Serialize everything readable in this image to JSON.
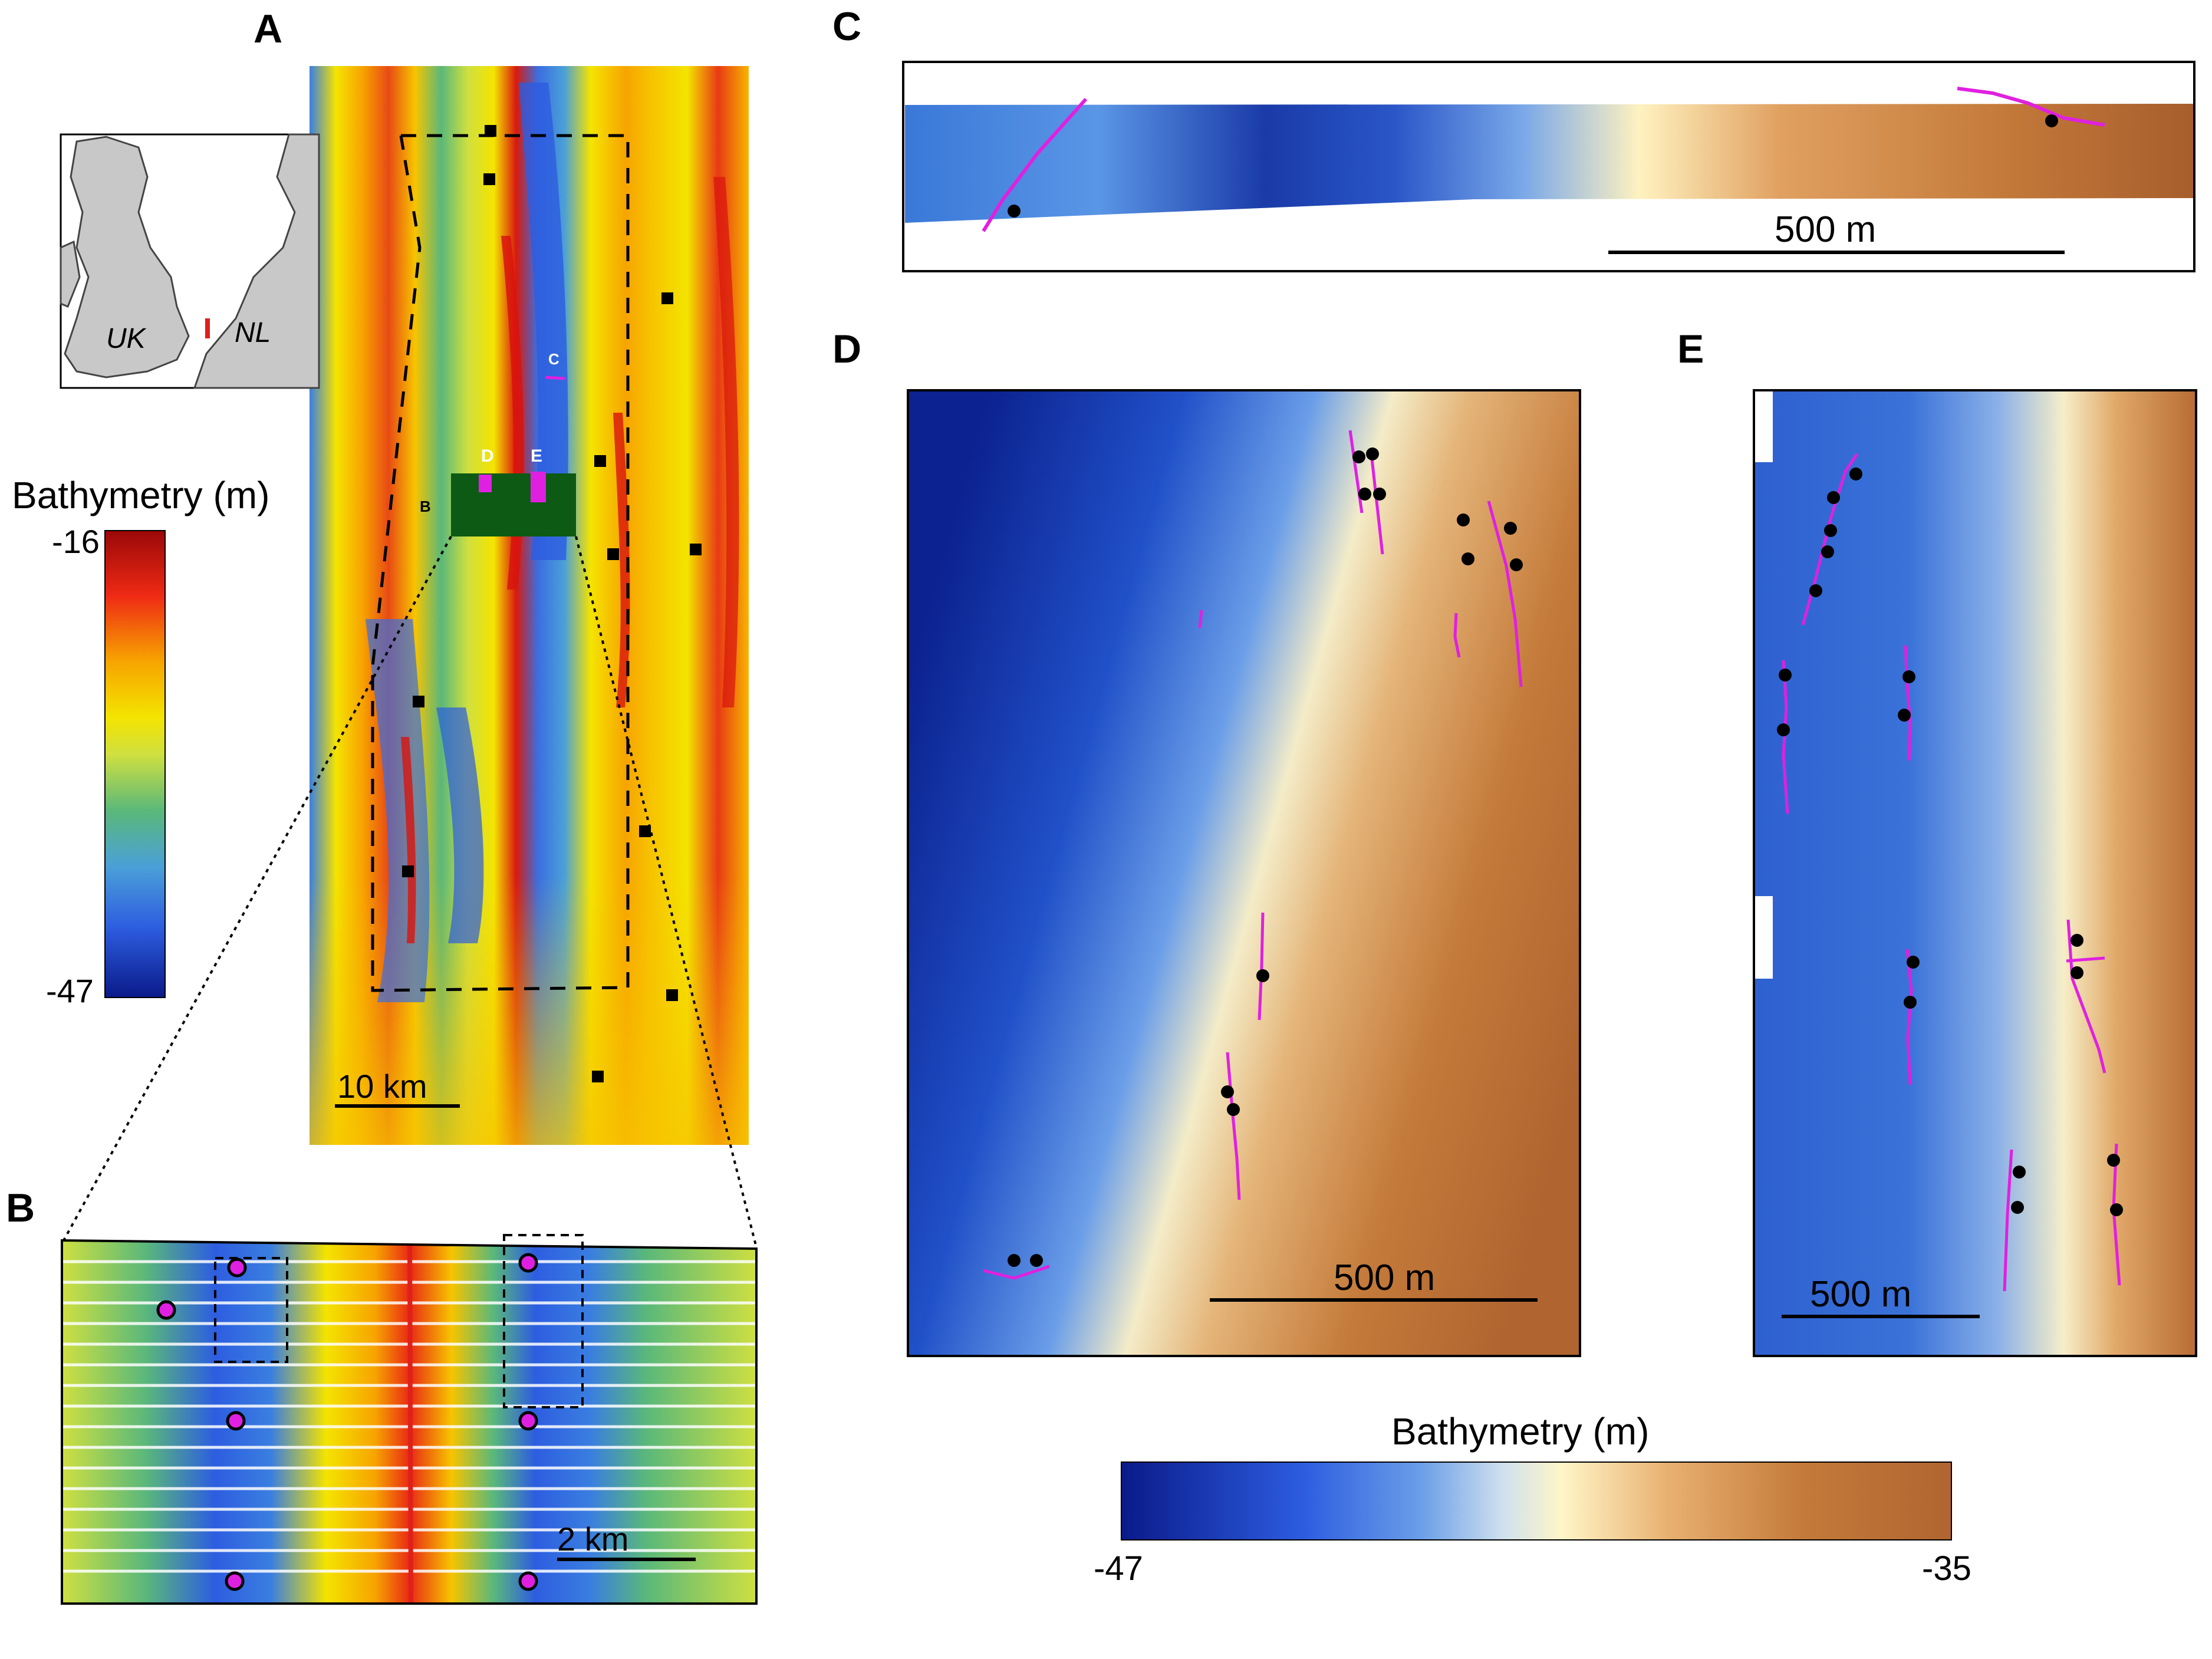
{
  "panels": {
    "a": "A",
    "b": "B",
    "c": "C",
    "d": "D",
    "e": "E"
  },
  "inset_map": {
    "uk_label": "UK",
    "nl_label": "NL"
  },
  "colorbar_left": {
    "title": "Bathymetry (m)",
    "max": "-16",
    "min": "-47",
    "colors": [
      "#0a1a8a",
      "#2d5de0",
      "#4aa0d8",
      "#5ab87a",
      "#cfe040",
      "#f4e400",
      "#f7a400",
      "#ef2a14",
      "#9a0808"
    ]
  },
  "colorbar_bottom": {
    "title": "Bathymetry (m)",
    "min": "-47",
    "max": "-35",
    "colors": [
      "#0a1a8a",
      "#2d5de0",
      "#6a9ee8",
      "#cfe0ee",
      "#fff6c8",
      "#e8b070",
      "#c47a3a",
      "#b06530"
    ]
  },
  "panel_a": {
    "box_labels": {
      "c": "C",
      "d": "D",
      "e": "E",
      "b": "B"
    },
    "scale_label": "10 km"
  },
  "panel_b": {
    "scale_label": "2 km"
  },
  "panel_c": {
    "scale_label": "500 m"
  },
  "panel_d": {
    "scale_label": "500 m"
  },
  "panel_e": {
    "scale_label": "500 m"
  },
  "accent_colors": {
    "tracks": "#e020e0",
    "box_green": "#0c5a14",
    "dots": "#000000"
  }
}
